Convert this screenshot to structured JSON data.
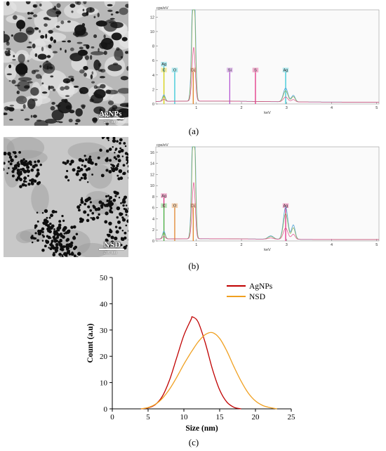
{
  "panel_a": {
    "caption": "(a)",
    "tem": {
      "label": "AgNPs",
      "scale": "200 nm"
    },
    "eds": {
      "units": "cps/eV",
      "xlabel": "keV",
      "y_ticks": [
        "12",
        "10",
        "8",
        "6",
        "4",
        "2",
        "0"
      ],
      "x_ticks": [
        "1",
        "2",
        "3",
        "4",
        "5"
      ],
      "ymax": 13,
      "peaks": [
        {
          "label": "Ag",
          "energy": 0.28,
          "height": 5.2,
          "color": "#22c4d4"
        },
        {
          "label": "C",
          "energy": 0.28,
          "height": 4.4,
          "color": "#e6d200"
        },
        {
          "label": "O",
          "energy": 0.52,
          "height": 4.4,
          "color": "#22c4d4"
        },
        {
          "label": "Cu",
          "energy": 0.93,
          "height": 4.4,
          "color": "#e07a1a"
        },
        {
          "label": "Si",
          "energy": 1.74,
          "height": 4.4,
          "color": "#b04ad0"
        },
        {
          "label": "S",
          "energy": 2.31,
          "height": 4.4,
          "color": "#e0207a"
        },
        {
          "label": "Ag",
          "energy": 2.98,
          "height": 4.4,
          "color": "#22c4d4"
        }
      ]
    }
  },
  "panel_b": {
    "caption": "(b)",
    "tem": {
      "label": "NSD",
      "scale": "200 nm"
    },
    "eds": {
      "units": "cps/eV",
      "xlabel": "keV",
      "y_ticks": [
        "16",
        "14",
        "12",
        "10",
        "8",
        "6",
        "4",
        "2",
        "0"
      ],
      "x_ticks": [
        "1",
        "2",
        "3",
        "4",
        "5"
      ],
      "ymax": 17,
      "peaks": [
        {
          "label": "Ag",
          "energy": 0.28,
          "height": 7.8,
          "color": "#e0207a"
        },
        {
          "label": "C",
          "energy": 0.28,
          "height": 6.0,
          "color": "#3cba3c"
        },
        {
          "label": "O",
          "energy": 0.52,
          "height": 6.0,
          "color": "#e07a1a"
        },
        {
          "label": "Cu",
          "energy": 0.93,
          "height": 6.0,
          "color": "#e07a1a"
        },
        {
          "label": "Ag",
          "energy": 2.98,
          "height": 6.0,
          "color": "#e0207a"
        }
      ]
    }
  },
  "panel_c": {
    "caption": "(c)"
  },
  "chart_data": {
    "type": "line",
    "xlabel": "Size (nm)",
    "ylabel": "Count (a.u)",
    "xlim": [
      0,
      25
    ],
    "ylim": [
      0,
      50
    ],
    "x_ticks": [
      0,
      5,
      10,
      15,
      20,
      25
    ],
    "y_ticks": [
      0,
      10,
      20,
      30,
      40,
      50
    ],
    "grid": false,
    "legend": "top-right",
    "x": [
      4,
      5,
      6,
      7,
      8,
      9,
      10,
      11,
      11.2,
      12,
      13,
      14,
      15,
      16,
      17,
      18,
      19,
      20,
      21,
      22,
      23
    ],
    "series": [
      {
        "name": "AgNPs",
        "color": "#c00000",
        "values": [
          0,
          0.4,
          1.6,
          4.8,
          11,
          19.5,
          28,
          34,
          35,
          33,
          25,
          15,
          7.2,
          2.6,
          0.6,
          0,
          null,
          null,
          null,
          null,
          null
        ]
      },
      {
        "name": "NSD",
        "color": "#f0a020",
        "values": [
          0,
          0.5,
          1.7,
          4,
          7.5,
          12,
          17,
          21.5,
          22.3,
          25.5,
          28.3,
          29,
          26.8,
          22,
          16,
          10.5,
          6,
          3,
          1.3,
          0.5,
          0
        ]
      }
    ]
  }
}
